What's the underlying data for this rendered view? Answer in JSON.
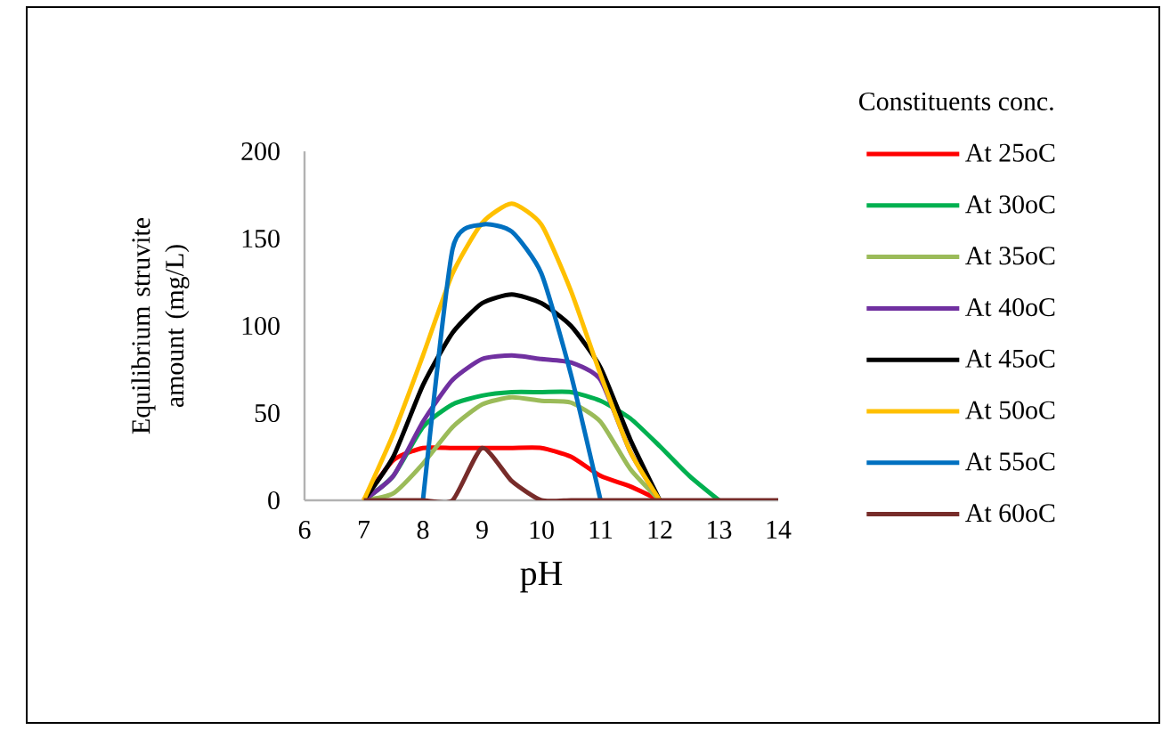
{
  "chart_data": {
    "type": "line",
    "xlabel": "pH",
    "ylabel": "Equilibrium struvite amount (mg/L)",
    "legend_title": "Constituents conc.",
    "legend": "right",
    "grid": false,
    "marker": "none",
    "line_style": "solid",
    "xlim": [
      6,
      14
    ],
    "xticks": [
      6,
      7,
      8,
      9,
      10,
      11,
      12,
      13,
      14
    ],
    "ylim": [
      0,
      200
    ],
    "yticks": [
      0,
      50,
      100,
      150,
      200
    ],
    "x": [
      7,
      7.5,
      8,
      8.5,
      9,
      9.5,
      10,
      10.5,
      11,
      11.5,
      12,
      12.5,
      13,
      13.5,
      14
    ],
    "series": [
      {
        "name": "At 25oC",
        "color": "#ff0000",
        "values": [
          0,
          23,
          30,
          30,
          30,
          30,
          30,
          25,
          14,
          8,
          0,
          null,
          null,
          null,
          null
        ]
      },
      {
        "name": "At 30oC",
        "color": "#00b050",
        "values": [
          0,
          14,
          42,
          55,
          60,
          62,
          62,
          62,
          57,
          47,
          31,
          14,
          0,
          null,
          null
        ]
      },
      {
        "name": "At 35oC",
        "color": "#9bbb59",
        "values": [
          0,
          4,
          21,
          42,
          55,
          59,
          57,
          56,
          45,
          18,
          0,
          null,
          null,
          null,
          null
        ]
      },
      {
        "name": "At 40oC",
        "color": "#7030a0",
        "values": [
          0,
          14,
          45,
          69,
          81,
          83,
          81,
          79,
          69,
          28,
          0,
          null,
          null,
          null,
          null
        ]
      },
      {
        "name": "At 45oC",
        "color": "#000000",
        "values": [
          0,
          25,
          66,
          96,
          113,
          118,
          113,
          100,
          76,
          35,
          0,
          null,
          null,
          null,
          null
        ]
      },
      {
        "name": "At 50oC",
        "color": "#ffc000",
        "values": [
          0,
          38,
          83,
          130,
          159,
          170,
          158,
          120,
          72,
          28,
          0,
          null,
          null,
          null,
          null
        ]
      },
      {
        "name": "At 55oC",
        "color": "#0070c0",
        "values": [
          null,
          null,
          0,
          144,
          158,
          154,
          130,
          72,
          0,
          null,
          null,
          null,
          null,
          null,
          null
        ]
      },
      {
        "name": "At 60oC",
        "color": "#772c2a",
        "values": [
          0,
          0,
          0,
          0,
          30,
          11,
          0,
          0,
          0,
          0,
          0,
          0,
          0,
          0,
          0
        ]
      }
    ]
  }
}
